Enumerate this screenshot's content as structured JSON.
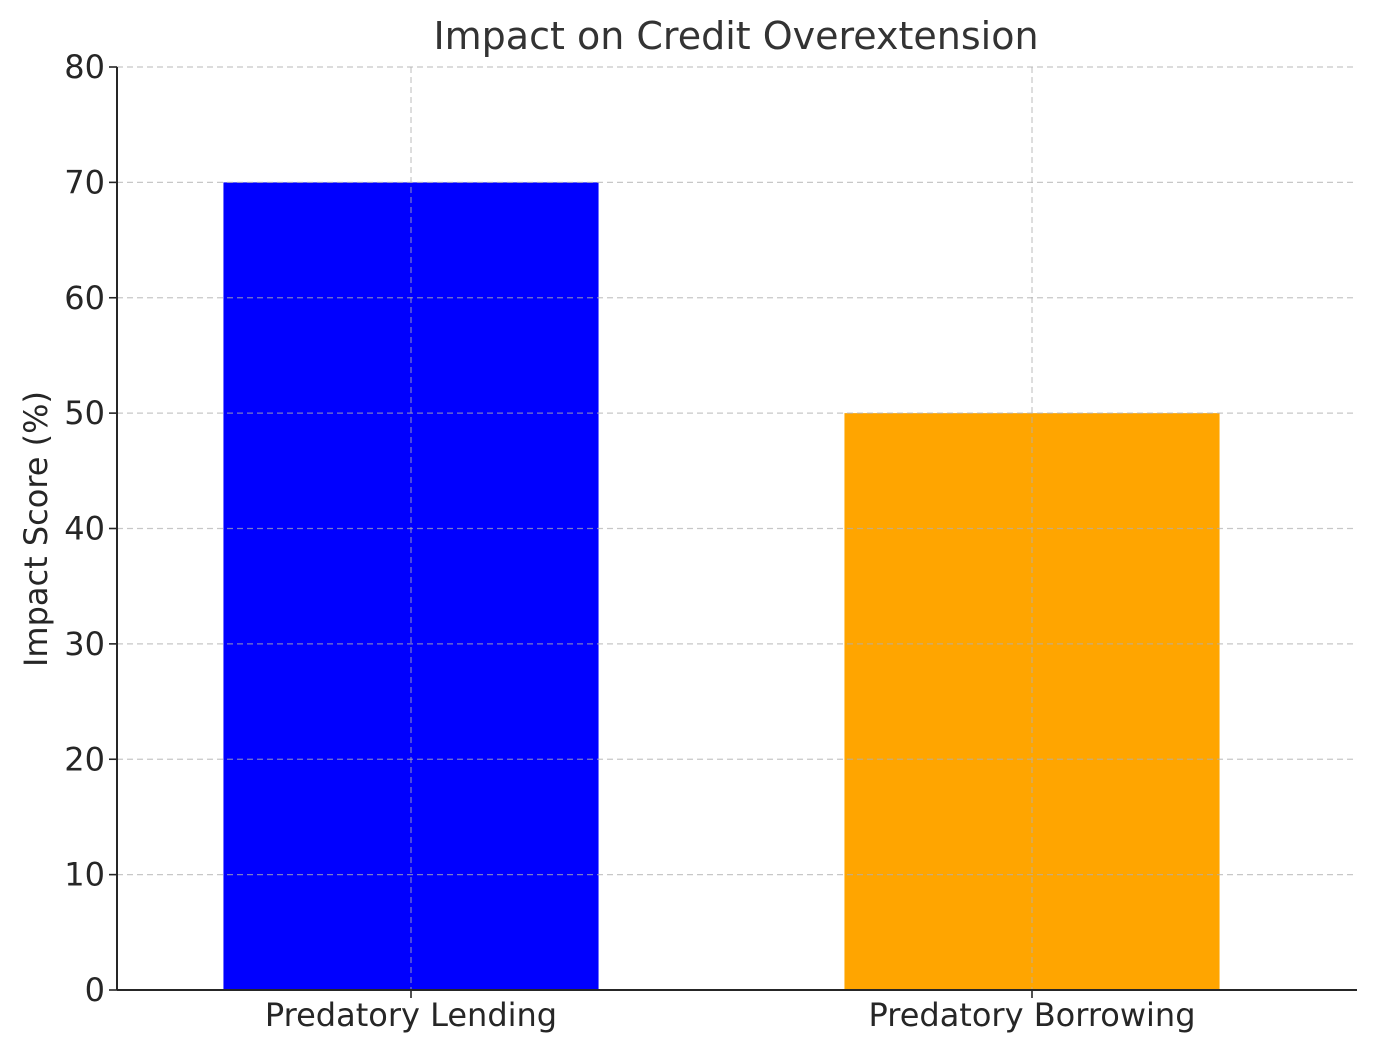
{
  "chart_data": {
    "type": "bar",
    "title": "Impact on Credit Overextension",
    "xlabel": "",
    "ylabel": "Impact Score (%)",
    "categories": [
      "Predatory Lending",
      "Predatory Borrowing"
    ],
    "values": [
      70,
      50
    ],
    "colors": [
      "#0000ff",
      "#ffa500"
    ],
    "ylim": [
      0,
      80
    ],
    "yticks": [
      0,
      10,
      20,
      30,
      40,
      50,
      60,
      70,
      80
    ],
    "grid": true,
    "grid_style": "dashed",
    "legend": "none"
  }
}
